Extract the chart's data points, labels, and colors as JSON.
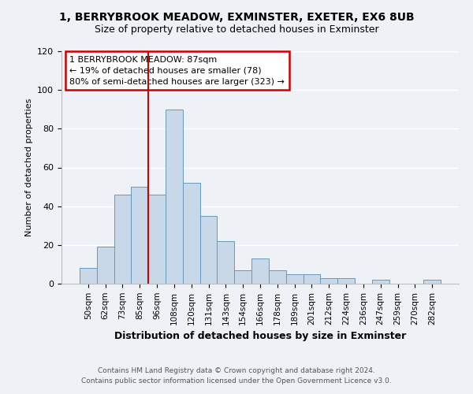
{
  "title": "1, BERRYBROOK MEADOW, EXMINSTER, EXETER, EX6 8UB",
  "subtitle": "Size of property relative to detached houses in Exminster",
  "xlabel": "Distribution of detached houses by size in Exminster",
  "ylabel": "Number of detached properties",
  "bin_labels": [
    "50sqm",
    "62sqm",
    "73sqm",
    "85sqm",
    "96sqm",
    "108sqm",
    "120sqm",
    "131sqm",
    "143sqm",
    "154sqm",
    "166sqm",
    "178sqm",
    "189sqm",
    "201sqm",
    "212sqm",
    "224sqm",
    "236sqm",
    "247sqm",
    "259sqm",
    "270sqm",
    "282sqm"
  ],
  "bar_values": [
    8,
    19,
    46,
    50,
    46,
    90,
    52,
    35,
    22,
    7,
    13,
    7,
    5,
    5,
    3,
    3,
    0,
    2,
    0,
    0,
    2
  ],
  "bar_color": "#c8d8e8",
  "bar_edge_color": "#6699bb",
  "vline_x_index": 3.5,
  "vline_color": "#cc0000",
  "annotation_line1": "1 BERRYBROOK MEADOW: 87sqm",
  "annotation_line2": "← 19% of detached houses are smaller (78)",
  "annotation_line3": "80% of semi-detached houses are larger (323) →",
  "annotation_box_color": "#cc0000",
  "annotation_text_color": "#000000",
  "ylim": [
    0,
    120
  ],
  "yticks": [
    0,
    20,
    40,
    60,
    80,
    100,
    120
  ],
  "footer_line1": "Contains HM Land Registry data © Crown copyright and database right 2024.",
  "footer_line2": "Contains public sector information licensed under the Open Government Licence v3.0.",
  "bg_color": "#eef2f7",
  "plot_bg_color": "#eef2f7",
  "grid_color": "#ffffff",
  "title_fontsize": 10,
  "subtitle_fontsize": 9,
  "ylabel_fontsize": 8,
  "xlabel_fontsize": 9,
  "tick_fontsize": 7.5,
  "ytick_fontsize": 8,
  "footer_fontsize": 6.5,
  "annot_fontsize": 8
}
